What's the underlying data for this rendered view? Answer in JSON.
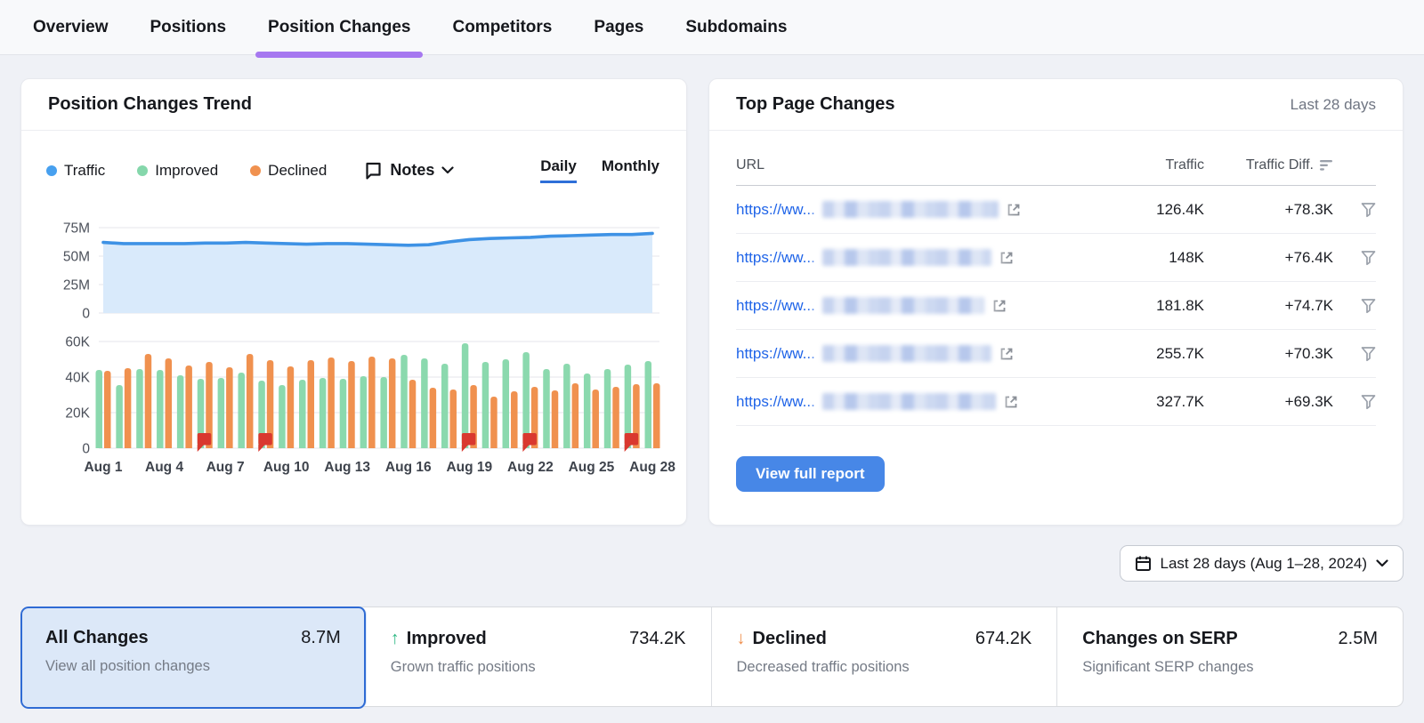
{
  "colors": {
    "accent_purple": "#a678f0",
    "link_blue": "#1f64e8",
    "button_blue": "#4787e7",
    "selected_card_border": "#2f6bd4",
    "selected_card_bg": "#dce8f8",
    "traffic_blue": "#47a0ef",
    "improved_green": "#8bd9ae",
    "declined_orange": "#f0914f",
    "note_red": "#d9382f"
  },
  "nav": {
    "tabs": [
      {
        "label": "Overview",
        "active": false
      },
      {
        "label": "Positions",
        "active": false
      },
      {
        "label": "Position Changes",
        "active": true
      },
      {
        "label": "Competitors",
        "active": false
      },
      {
        "label": "Pages",
        "active": false
      },
      {
        "label": "Subdomains",
        "active": false
      }
    ]
  },
  "trend_card": {
    "title": "Position Changes Trend",
    "legend": [
      {
        "label": "Traffic",
        "color": "#47a0ef"
      },
      {
        "label": "Improved",
        "color": "#85d7ab"
      },
      {
        "label": "Declined",
        "color": "#f0914f"
      }
    ],
    "notes_label": "Notes",
    "granularity": {
      "options": [
        "Daily",
        "Monthly"
      ],
      "selected": "Daily"
    }
  },
  "chart_data": [
    {
      "type": "area",
      "series_name": "Traffic",
      "categories": [
        "Aug 1",
        "Aug 2",
        "Aug 3",
        "Aug 4",
        "Aug 5",
        "Aug 6",
        "Aug 7",
        "Aug 8",
        "Aug 9",
        "Aug 10",
        "Aug 11",
        "Aug 12",
        "Aug 13",
        "Aug 14",
        "Aug 15",
        "Aug 16",
        "Aug 17",
        "Aug 18",
        "Aug 19",
        "Aug 20",
        "Aug 21",
        "Aug 22",
        "Aug 23",
        "Aug 24",
        "Aug 25",
        "Aug 26",
        "Aug 27",
        "Aug 28"
      ],
      "values_millions": [
        62,
        61,
        61,
        61,
        61,
        61.5,
        61.5,
        62,
        61.5,
        61,
        60.5,
        61,
        61,
        60.5,
        60,
        59.5,
        60,
        62.5,
        64.5,
        65.5,
        66,
        66.5,
        67.5,
        68,
        68.5,
        69,
        69,
        70
      ],
      "ylim": [
        0,
        75
      ],
      "yticks": [
        0,
        25,
        50,
        75
      ],
      "ytick_labels": [
        "0",
        "25M",
        "50M",
        "75M"
      ],
      "grid": true,
      "line_color": "#3e92e5",
      "fill_color": "#d9eafb"
    },
    {
      "type": "bar",
      "categories": [
        "Aug 1",
        "Aug 2",
        "Aug 3",
        "Aug 4",
        "Aug 5",
        "Aug 6",
        "Aug 7",
        "Aug 8",
        "Aug 9",
        "Aug 10",
        "Aug 11",
        "Aug 12",
        "Aug 13",
        "Aug 14",
        "Aug 15",
        "Aug 16",
        "Aug 17",
        "Aug 18",
        "Aug 19",
        "Aug 20",
        "Aug 21",
        "Aug 22",
        "Aug 23",
        "Aug 24",
        "Aug 25",
        "Aug 26",
        "Aug 27",
        "Aug 28"
      ],
      "series": [
        {
          "name": "Improved",
          "color": "#8bd9ae",
          "values_thousands": [
            44,
            35.5,
            44.5,
            44,
            41,
            39,
            39.5,
            42.5,
            38,
            35.5,
            38.5,
            39.5,
            39,
            40.5,
            40,
            52.5,
            50.5,
            47.5,
            59,
            48.5,
            50,
            54,
            44.5,
            47.5,
            42,
            44.5,
            47,
            49
          ]
        },
        {
          "name": "Declined",
          "color": "#f0914f",
          "values_thousands": [
            43.5,
            45,
            53,
            50.5,
            46.5,
            48.5,
            45.5,
            53,
            49.5,
            46,
            49.5,
            51,
            49,
            51.5,
            50.5,
            38.5,
            34,
            33,
            35.5,
            29,
            32,
            34.5,
            32.5,
            36.5,
            33,
            34.5,
            36,
            36.5
          ]
        }
      ],
      "ylim": [
        0,
        60
      ],
      "yticks": [
        0,
        20,
        40,
        60
      ],
      "ytick_labels": [
        "0",
        "20K",
        "40K",
        "60K"
      ],
      "x_tick_labels": [
        "Aug 1",
        "Aug 4",
        "Aug 7",
        "Aug 10",
        "Aug 13",
        "Aug 16",
        "Aug 19",
        "Aug 22",
        "Aug 25",
        "Aug 28"
      ],
      "note_markers": [
        "Aug 6",
        "Aug 9",
        "Aug 19",
        "Aug 22",
        "Aug 27"
      ],
      "note_color": "#d9382f",
      "grid": true,
      "legend_position": "top"
    }
  ],
  "top_pages_card": {
    "title": "Top Page Changes",
    "period": "Last 28 days",
    "columns": {
      "url": "URL",
      "traffic": "Traffic",
      "diff": "Traffic Diff."
    },
    "rows": [
      {
        "url_prefix": "https://ww...",
        "traffic": "126.4K",
        "diff": "+78.3K"
      },
      {
        "url_prefix": "https://ww...",
        "traffic": "148K",
        "diff": "+76.4K"
      },
      {
        "url_prefix": "https://ww...",
        "traffic": "181.8K",
        "diff": "+74.7K"
      },
      {
        "url_prefix": "https://ww...",
        "traffic": "255.7K",
        "diff": "+70.3K"
      },
      {
        "url_prefix": "https://ww...",
        "traffic": "327.7K",
        "diff": "+69.3K"
      }
    ],
    "button_label": "View full report"
  },
  "date_selector": {
    "label": "Last 28 days (Aug 1–28, 2024)"
  },
  "summary_cards": [
    {
      "title": "All Changes",
      "value": "8.7M",
      "subtitle": "View all position changes",
      "selected": true,
      "arrow": ""
    },
    {
      "title": "Improved",
      "value": "734.2K",
      "subtitle": "Grown traffic positions",
      "selected": false,
      "arrow": "↑"
    },
    {
      "title": "Declined",
      "value": "674.2K",
      "subtitle": "Decreased traffic positions",
      "selected": false,
      "arrow": "↓"
    },
    {
      "title": "Changes on SERP",
      "value": "2.5M",
      "subtitle": "Significant SERP changes",
      "selected": false,
      "arrow": ""
    }
  ]
}
